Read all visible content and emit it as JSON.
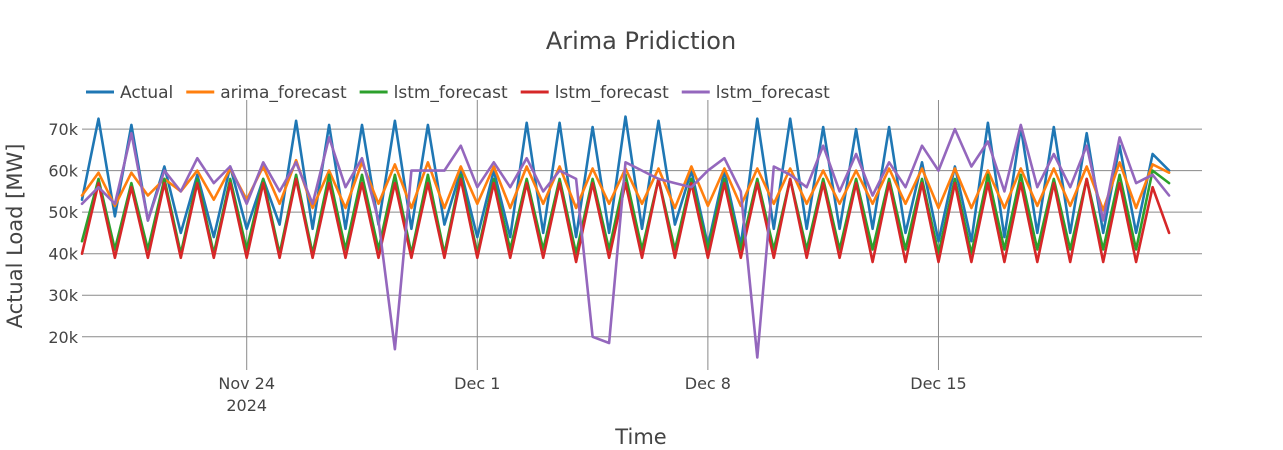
{
  "chart_data": {
    "type": "line",
    "title": "Arima Pridiction",
    "xlabel": "Time",
    "ylabel": "Actual Load [MW]",
    "xlim": [
      "2024-11-19",
      "2024-12-23"
    ],
    "ylim": [
      12000,
      77000
    ],
    "x_tick_labels": [
      {
        "label": "Nov 24",
        "sub": "2024"
      },
      {
        "label": "Dec 1",
        "sub": ""
      },
      {
        "label": "Dec 8",
        "sub": ""
      },
      {
        "label": "Dec 15",
        "sub": ""
      }
    ],
    "y_tick_labels": [
      "20k",
      "30k",
      "40k",
      "50k",
      "60k",
      "70k"
    ],
    "legend_position": "top-left",
    "grid": true,
    "series": [
      {
        "name": "Actual",
        "color": "#1f77b4",
        "x": [
          "2024-11-19 00:00",
          "2024-11-19 12:00",
          "2024-11-20 00:00",
          "2024-11-20 12:00",
          "2024-11-21 00:00",
          "2024-11-21 12:00",
          "2024-11-22 00:00",
          "2024-11-22 12:00",
          "2024-11-23 00:00",
          "2024-11-23 12:00",
          "2024-11-24 00:00",
          "2024-11-24 12:00",
          "2024-11-25 00:00",
          "2024-11-25 12:00",
          "2024-11-26 00:00",
          "2024-11-26 12:00",
          "2024-11-27 00:00",
          "2024-11-27 12:00",
          "2024-11-28 00:00",
          "2024-11-28 12:00",
          "2024-11-29 00:00",
          "2024-11-29 12:00",
          "2024-11-30 00:00",
          "2024-11-30 12:00",
          "2024-12-01 00:00",
          "2024-12-01 12:00",
          "2024-12-02 00:00",
          "2024-12-02 12:00",
          "2024-12-03 00:00",
          "2024-12-03 12:00",
          "2024-12-04 00:00",
          "2024-12-04 12:00",
          "2024-12-05 00:00",
          "2024-12-05 12:00",
          "2024-12-06 00:00",
          "2024-12-06 12:00",
          "2024-12-07 00:00",
          "2024-12-07 12:00",
          "2024-12-08 00:00",
          "2024-12-08 12:00",
          "2024-12-09 00:00",
          "2024-12-09 12:00",
          "2024-12-10 00:00",
          "2024-12-10 12:00",
          "2024-12-11 00:00",
          "2024-12-11 12:00",
          "2024-12-12 00:00",
          "2024-12-12 12:00",
          "2024-12-13 00:00",
          "2024-12-13 12:00",
          "2024-12-14 00:00",
          "2024-12-14 12:00",
          "2024-12-15 00:00",
          "2024-12-15 12:00",
          "2024-12-16 00:00",
          "2024-12-16 12:00",
          "2024-12-17 00:00",
          "2024-12-17 12:00",
          "2024-12-18 00:00",
          "2024-12-18 12:00",
          "2024-12-19 00:00",
          "2024-12-19 12:00",
          "2024-12-20 00:00",
          "2024-12-20 12:00",
          "2024-12-21 00:00",
          "2024-12-21 12:00",
          "2024-12-22 00:00"
        ],
        "y": [
          53000,
          72500,
          49000,
          71000,
          48000,
          61000,
          45000,
          59000,
          44000,
          61000,
          46000,
          58000,
          47000,
          72000,
          46000,
          71000,
          46000,
          71000,
          47000,
          72000,
          46000,
          71000,
          47000,
          60000,
          44000,
          60000,
          44000,
          71500,
          45000,
          71500,
          44000,
          70500,
          45000,
          73000,
          46000,
          72000,
          47000,
          60000,
          42000,
          60000,
          42000,
          72500,
          46000,
          72500,
          46000,
          70500,
          46000,
          70000,
          46000,
          70500,
          45000,
          62000,
          43000,
          61000,
          43000,
          71500,
          44000,
          70500,
          45000,
          70500,
          45000,
          69000,
          45000,
          66000,
          45000,
          64000,
          60000
        ]
      },
      {
        "name": "arima_forecast",
        "color": "#ff7f0e",
        "x": [
          "2024-11-19 00:00",
          "2024-11-19 12:00",
          "2024-11-20 00:00",
          "2024-11-20 12:00",
          "2024-11-21 00:00",
          "2024-11-21 12:00",
          "2024-11-22 00:00",
          "2024-11-22 12:00",
          "2024-11-23 00:00",
          "2024-11-23 12:00",
          "2024-11-24 00:00",
          "2024-11-24 12:00",
          "2024-11-25 00:00",
          "2024-11-25 12:00",
          "2024-11-26 00:00",
          "2024-11-26 12:00",
          "2024-11-27 00:00",
          "2024-11-27 12:00",
          "2024-11-28 00:00",
          "2024-11-28 12:00",
          "2024-11-29 00:00",
          "2024-11-29 12:00",
          "2024-11-30 00:00",
          "2024-11-30 12:00",
          "2024-12-01 00:00",
          "2024-12-01 12:00",
          "2024-12-02 00:00",
          "2024-12-02 12:00",
          "2024-12-03 00:00",
          "2024-12-03 12:00",
          "2024-12-04 00:00",
          "2024-12-04 12:00",
          "2024-12-05 00:00",
          "2024-12-05 12:00",
          "2024-12-06 00:00",
          "2024-12-06 12:00",
          "2024-12-07 00:00",
          "2024-12-07 12:00",
          "2024-12-08 00:00",
          "2024-12-08 12:00",
          "2024-12-09 00:00",
          "2024-12-09 12:00",
          "2024-12-10 00:00",
          "2024-12-10 12:00",
          "2024-12-11 00:00",
          "2024-12-11 12:00",
          "2024-12-12 00:00",
          "2024-12-12 12:00",
          "2024-12-13 00:00",
          "2024-12-13 12:00",
          "2024-12-14 00:00",
          "2024-12-14 12:00",
          "2024-12-15 00:00",
          "2024-12-15 12:00",
          "2024-12-16 00:00",
          "2024-12-16 12:00",
          "2024-12-17 00:00",
          "2024-12-17 12:00",
          "2024-12-18 00:00",
          "2024-12-18 12:00",
          "2024-12-19 00:00",
          "2024-12-19 12:00",
          "2024-12-20 00:00",
          "2024-12-20 12:00",
          "2024-12-21 00:00",
          "2024-12-21 12:00",
          "2024-12-22 00:00"
        ],
        "y": [
          54000,
          59500,
          51500,
          59500,
          54000,
          58000,
          55000,
          60000,
          53000,
          60500,
          53000,
          61000,
          52000,
          62500,
          51000,
          60000,
          51000,
          62000,
          52000,
          61500,
          51000,
          62000,
          51000,
          61000,
          52000,
          61000,
          51000,
          61000,
          52000,
          61000,
          51000,
          60500,
          52000,
          60500,
          52000,
          60500,
          51000,
          61000,
          51500,
          60500,
          51500,
          60500,
          52000,
          60500,
          52000,
          60000,
          52000,
          60000,
          52000,
          60500,
          52000,
          60500,
          51000,
          60500,
          51000,
          60000,
          51000,
          60500,
          51500,
          60500,
          51500,
          61000,
          50500,
          62000,
          51000,
          61500,
          59500
        ]
      },
      {
        "name": "lstm_forecast",
        "color": "#2ca02c",
        "x": [
          "2024-11-19 00:00",
          "2024-11-19 12:00",
          "2024-11-20 00:00",
          "2024-11-20 12:00",
          "2024-11-21 00:00",
          "2024-11-21 12:00",
          "2024-11-22 00:00",
          "2024-11-22 12:00",
          "2024-11-23 00:00",
          "2024-11-23 12:00",
          "2024-11-24 00:00",
          "2024-11-24 12:00",
          "2024-11-25 00:00",
          "2024-11-25 12:00",
          "2024-11-26 00:00",
          "2024-11-26 12:00",
          "2024-11-27 00:00",
          "2024-11-27 12:00",
          "2024-11-28 00:00",
          "2024-11-28 12:00",
          "2024-11-29 00:00",
          "2024-11-29 12:00",
          "2024-11-30 00:00",
          "2024-11-30 12:00",
          "2024-12-01 00:00",
          "2024-12-01 12:00",
          "2024-12-02 00:00",
          "2024-12-02 12:00",
          "2024-12-03 00:00",
          "2024-12-03 12:00",
          "2024-12-04 00:00",
          "2024-12-04 12:00",
          "2024-12-05 00:00",
          "2024-12-05 12:00",
          "2024-12-06 00:00",
          "2024-12-06 12:00",
          "2024-12-07 00:00",
          "2024-12-07 12:00",
          "2024-12-08 00:00",
          "2024-12-08 12:00",
          "2024-12-09 00:00",
          "2024-12-09 12:00",
          "2024-12-10 00:00",
          "2024-12-10 12:00",
          "2024-12-11 00:00",
          "2024-12-11 12:00",
          "2024-12-12 00:00",
          "2024-12-12 12:00",
          "2024-12-13 00:00",
          "2024-12-13 12:00",
          "2024-12-14 00:00",
          "2024-12-14 12:00",
          "2024-12-15 00:00",
          "2024-12-15 12:00",
          "2024-12-16 00:00",
          "2024-12-16 12:00",
          "2024-12-17 00:00",
          "2024-12-17 12:00",
          "2024-12-18 00:00",
          "2024-12-18 12:00",
          "2024-12-19 00:00",
          "2024-12-19 12:00",
          "2024-12-20 00:00",
          "2024-12-20 12:00",
          "2024-12-21 00:00",
          "2024-12-21 12:00",
          "2024-12-22 00:00"
        ],
        "y": [
          43000,
          58000,
          41000,
          57000,
          41000,
          58000,
          40000,
          58000,
          40000,
          58000,
          41000,
          58000,
          40000,
          59000,
          40000,
          59000,
          41000,
          59000,
          41000,
          59000,
          40000,
          59000,
          40000,
          59000,
          40000,
          58000,
          41000,
          58000,
          41000,
          58000,
          40000,
          58000,
          41000,
          59000,
          41000,
          58000,
          41000,
          58000,
          41000,
          58000,
          41000,
          58000,
          41000,
          58000,
          41000,
          58000,
          41000,
          58000,
          41000,
          58000,
          41000,
          58000,
          40000,
          58000,
          40000,
          59000,
          41000,
          59000,
          41000,
          58000,
          41000,
          58000,
          41000,
          59000,
          41000,
          60000,
          57000
        ]
      },
      {
        "name": "lstm_forecast",
        "color": "#d62728",
        "x": [
          "2024-11-19 00:00",
          "2024-11-19 12:00",
          "2024-11-20 00:00",
          "2024-11-20 12:00",
          "2024-11-21 00:00",
          "2024-11-21 12:00",
          "2024-11-22 00:00",
          "2024-11-22 12:00",
          "2024-11-23 00:00",
          "2024-11-23 12:00",
          "2024-11-24 00:00",
          "2024-11-24 12:00",
          "2024-11-25 00:00",
          "2024-11-25 12:00",
          "2024-11-26 00:00",
          "2024-11-26 12:00",
          "2024-11-27 00:00",
          "2024-11-27 12:00",
          "2024-11-28 00:00",
          "2024-11-28 12:00",
          "2024-11-29 00:00",
          "2024-11-29 12:00",
          "2024-11-30 00:00",
          "2024-11-30 12:00",
          "2024-12-01 00:00",
          "2024-12-01 12:00",
          "2024-12-02 00:00",
          "2024-12-02 12:00",
          "2024-12-03 00:00",
          "2024-12-03 12:00",
          "2024-12-04 00:00",
          "2024-12-04 12:00",
          "2024-12-05 00:00",
          "2024-12-05 12:00",
          "2024-12-06 00:00",
          "2024-12-06 12:00",
          "2024-12-07 00:00",
          "2024-12-07 12:00",
          "2024-12-08 00:00",
          "2024-12-08 12:00",
          "2024-12-09 00:00",
          "2024-12-09 12:00",
          "2024-12-10 00:00",
          "2024-12-10 12:00",
          "2024-12-11 00:00",
          "2024-12-11 12:00",
          "2024-12-12 00:00",
          "2024-12-12 12:00",
          "2024-12-13 00:00",
          "2024-12-13 12:00",
          "2024-12-14 00:00",
          "2024-12-14 12:00",
          "2024-12-15 00:00",
          "2024-12-15 12:00",
          "2024-12-16 00:00",
          "2024-12-16 12:00",
          "2024-12-17 00:00",
          "2024-12-17 12:00",
          "2024-12-18 00:00",
          "2024-12-18 12:00",
          "2024-12-19 00:00",
          "2024-12-19 12:00",
          "2024-12-20 00:00",
          "2024-12-20 12:00",
          "2024-12-21 00:00",
          "2024-12-21 12:00",
          "2024-12-22 00:00"
        ],
        "y": [
          40000,
          57000,
          39000,
          56000,
          39000,
          57000,
          39000,
          57000,
          39000,
          57000,
          39000,
          57000,
          39000,
          58000,
          39000,
          57000,
          39000,
          57000,
          39000,
          57000,
          39000,
          57000,
          39000,
          58000,
          39000,
          57000,
          39000,
          57000,
          39000,
          57000,
          38000,
          57000,
          39000,
          57000,
          39000,
          58000,
          39000,
          57000,
          39000,
          57000,
          39000,
          57000,
          39000,
          58000,
          39000,
          57000,
          39000,
          57000,
          38000,
          57000,
          38000,
          57000,
          38000,
          57000,
          38000,
          57000,
          38000,
          57000,
          38000,
          57000,
          38000,
          58000,
          38000,
          57000,
          38000,
          56000,
          45000
        ]
      },
      {
        "name": "lstm_forecast",
        "color": "#9467bd",
        "x": [
          "2024-11-19 00:00",
          "2024-11-19 12:00",
          "2024-11-20 00:00",
          "2024-11-20 12:00",
          "2024-11-21 00:00",
          "2024-11-21 12:00",
          "2024-11-22 00:00",
          "2024-11-22 12:00",
          "2024-11-23 00:00",
          "2024-11-23 12:00",
          "2024-11-24 00:00",
          "2024-11-24 12:00",
          "2024-11-25 00:00",
          "2024-11-25 12:00",
          "2024-11-26 00:00",
          "2024-11-26 12:00",
          "2024-11-27 00:00",
          "2024-11-27 12:00",
          "2024-11-28 00:00",
          "2024-11-28 12:00",
          "2024-11-29 00:00",
          "2024-11-29 12:00",
          "2024-11-30 00:00",
          "2024-11-30 12:00",
          "2024-12-01 00:00",
          "2024-12-01 12:00",
          "2024-12-02 00:00",
          "2024-12-02 12:00",
          "2024-12-03 00:00",
          "2024-12-03 12:00",
          "2024-12-04 00:00",
          "2024-12-04 12:00",
          "2024-12-05 00:00",
          "2024-12-05 12:00",
          "2024-12-06 00:00",
          "2024-12-06 12:00",
          "2024-12-07 00:00",
          "2024-12-07 12:00",
          "2024-12-08 00:00",
          "2024-12-08 12:00",
          "2024-12-09 00:00",
          "2024-12-09 12:00",
          "2024-12-10 00:00",
          "2024-12-10 12:00",
          "2024-12-11 00:00",
          "2024-12-11 12:00",
          "2024-12-12 00:00",
          "2024-12-12 12:00",
          "2024-12-13 00:00",
          "2024-12-13 12:00",
          "2024-12-14 00:00",
          "2024-12-14 12:00",
          "2024-12-15 00:00",
          "2024-12-15 12:00",
          "2024-12-16 00:00",
          "2024-12-16 12:00",
          "2024-12-17 00:00",
          "2024-12-17 12:00",
          "2024-12-18 00:00",
          "2024-12-18 12:00",
          "2024-12-19 00:00",
          "2024-12-19 12:00",
          "2024-12-20 00:00",
          "2024-12-20 12:00",
          "2024-12-21 00:00",
          "2024-12-21 12:00",
          "2024-12-22 00:00"
        ],
        "y": [
          52000,
          56000,
          52000,
          69000,
          48000,
          60000,
          55000,
          63000,
          57000,
          61000,
          52000,
          62000,
          55000,
          62000,
          52000,
          68000,
          56000,
          63000,
          48000,
          17000,
          60000,
          60000,
          60000,
          66000,
          56000,
          62000,
          56000,
          63000,
          55000,
          60000,
          58000,
          20000,
          18500,
          62000,
          60000,
          58000,
          57000,
          56000,
          60000,
          63000,
          55000,
          15000,
          61000,
          59000,
          56000,
          66000,
          55000,
          64000,
          54000,
          62000,
          56000,
          66000,
          60000,
          70000,
          61000,
          67000,
          55000,
          71000,
          56000,
          64000,
          56000,
          66000,
          48000,
          68000,
          57000,
          59000,
          54000
        ]
      }
    ]
  }
}
